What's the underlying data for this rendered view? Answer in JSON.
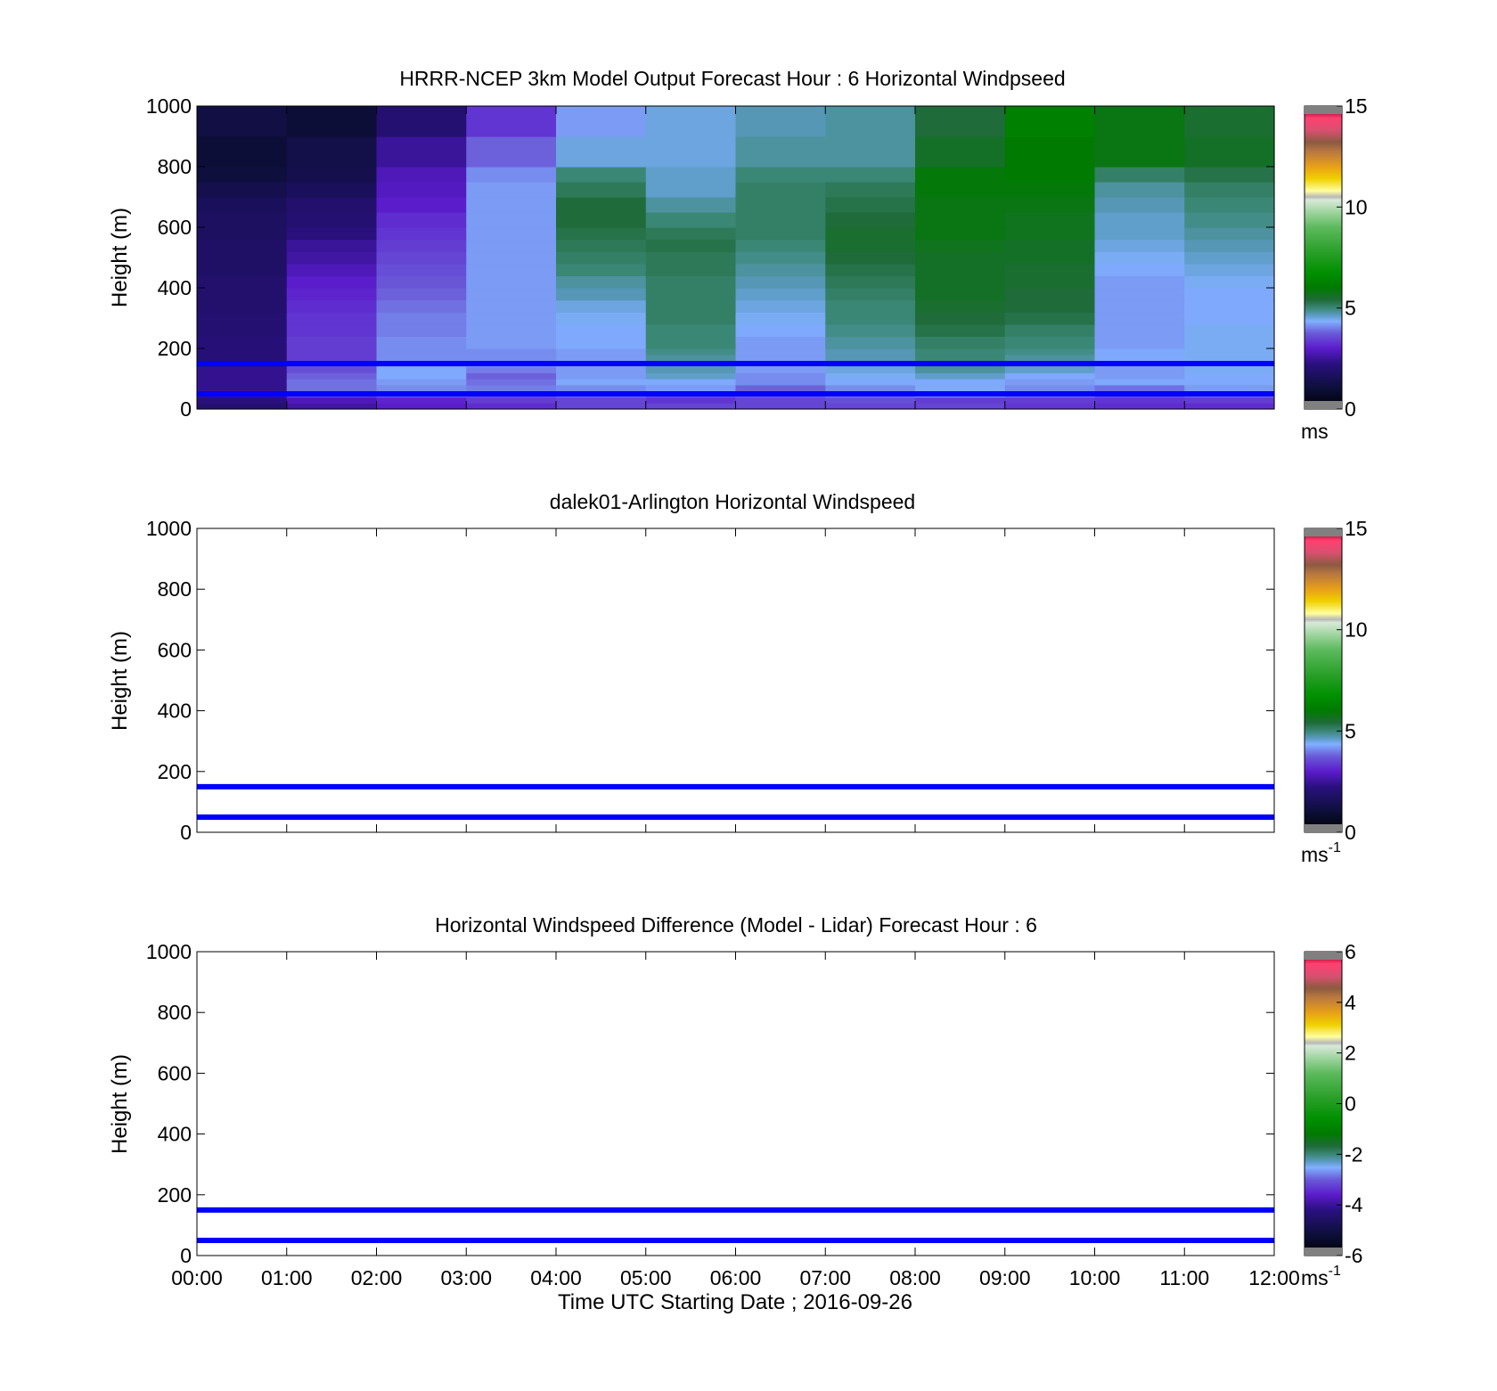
{
  "figure": {
    "xlabel": "Time UTC  Starting Date ; 2016-09-26",
    "x_ticks": [
      "00:00",
      "01:00",
      "02:00",
      "03:00",
      "04:00",
      "05:00",
      "06:00",
      "07:00",
      "08:00",
      "09:00",
      "10:00",
      "11:00",
      "12:00"
    ],
    "y_ticks": [
      "0",
      "200",
      "400",
      "600",
      "800",
      "1000"
    ],
    "line_color": "#0000ff",
    "colormap": [
      {
        "v": 0.0,
        "c": "#000000"
      },
      {
        "v": 0.07,
        "c": "#0d0f3a"
      },
      {
        "v": 0.15,
        "c": "#2a1080"
      },
      {
        "v": 0.2,
        "c": "#5b1ccc"
      },
      {
        "v": 0.25,
        "c": "#6a5ad8"
      },
      {
        "v": 0.29,
        "c": "#80b0ff"
      },
      {
        "v": 0.31,
        "c": "#5a9ac0"
      },
      {
        "v": 0.33,
        "c": "#3e8a7e"
      },
      {
        "v": 0.36,
        "c": "#1f6b3a"
      },
      {
        "v": 0.4,
        "c": "#007a00"
      },
      {
        "v": 0.45,
        "c": "#009000"
      },
      {
        "v": 0.52,
        "c": "#2aa02a"
      },
      {
        "v": 0.6,
        "c": "#5cba5c"
      },
      {
        "v": 0.65,
        "c": "#9fd49f"
      },
      {
        "v": 0.69,
        "c": "#d8ead8"
      },
      {
        "v": 0.7,
        "c": "#b8b8b8"
      },
      {
        "v": 0.72,
        "c": "#ffffa0"
      },
      {
        "v": 0.76,
        "c": "#f0d000"
      },
      {
        "v": 0.8,
        "c": "#e8a018"
      },
      {
        "v": 0.85,
        "c": "#b87840"
      },
      {
        "v": 0.88,
        "c": "#8c5a40"
      },
      {
        "v": 0.92,
        "c": "#d85070"
      },
      {
        "v": 0.96,
        "c": "#ff4070"
      },
      {
        "v": 0.98,
        "c": "#c0103a"
      },
      {
        "v": 1.0,
        "c": "#a00020"
      }
    ]
  },
  "chart_data": [
    {
      "type": "heatmap",
      "title": "HRRR-NCEP 3km Model Output   Forecast Hour : 6 Horizontal Windpseed",
      "ylabel": "Height (m)",
      "ylim": [
        0,
        1000
      ],
      "x_hours": [
        0,
        1,
        2,
        3,
        4,
        5,
        6,
        7,
        8,
        9,
        10,
        11,
        12
      ],
      "y_edges": [
        0,
        20,
        40,
        60,
        80,
        100,
        120,
        140,
        160,
        180,
        200,
        240,
        280,
        320,
        360,
        400,
        440,
        480,
        520,
        560,
        600,
        650,
        700,
        750,
        800,
        900,
        1000
      ],
      "values": [
        [
          2.0,
          2.6,
          3.0,
          3.2,
          3.5,
          3.5,
          3.5,
          3.5,
          3.5,
          3.3,
          3.2,
          3.2
        ],
        [
          2.2,
          2.8,
          3.1,
          3.4,
          3.5,
          3.3,
          3.5,
          3.6,
          3.4,
          3.4,
          3.3,
          3.4
        ],
        [
          2.4,
          3.5,
          3.8,
          3.7,
          3.9,
          3.7,
          3.8,
          4.0,
          4.2,
          4.0,
          3.7,
          3.9
        ],
        [
          2.4,
          3.9,
          4.1,
          4.0,
          4.1,
          4.2,
          3.8,
          4.1,
          4.3,
          4.1,
          3.9,
          4.2
        ],
        [
          2.4,
          3.9,
          4.2,
          3.9,
          4.3,
          4.3,
          4.1,
          4.3,
          4.3,
          4.2,
          4.3,
          4.3
        ],
        [
          2.4,
          3.8,
          4.3,
          3.8,
          4.2,
          4.6,
          4.1,
          4.4,
          4.6,
          4.3,
          4.2,
          4.3
        ],
        [
          2.4,
          3.6,
          4.3,
          4.0,
          4.2,
          4.7,
          4.2,
          4.5,
          4.8,
          4.6,
          4.2,
          4.4
        ],
        [
          2.2,
          3.5,
          4.2,
          4.1,
          4.2,
          4.7,
          4.2,
          4.6,
          4.9,
          4.7,
          4.2,
          4.4
        ],
        [
          2.1,
          3.4,
          4.1,
          4.1,
          4.2,
          4.8,
          4.2,
          4.7,
          5.0,
          4.8,
          4.3,
          4.4
        ],
        [
          2.1,
          3.4,
          4.1,
          4.1,
          4.2,
          4.9,
          4.2,
          4.7,
          5.0,
          4.9,
          4.3,
          4.4
        ],
        [
          2.1,
          3.4,
          4.1,
          4.2,
          4.3,
          5.0,
          4.2,
          4.8,
          5.1,
          5.0,
          4.2,
          4.4
        ],
        [
          2.0,
          3.3,
          4.0,
          4.2,
          4.3,
          5.0,
          4.3,
          4.9,
          5.3,
          5.1,
          4.2,
          4.4
        ],
        [
          2.0,
          3.3,
          4.0,
          4.2,
          4.4,
          5.1,
          4.4,
          5.0,
          5.4,
          5.3,
          4.2,
          4.3
        ],
        [
          1.9,
          3.2,
          3.9,
          4.2,
          4.5,
          5.1,
          4.5,
          5.0,
          5.5,
          5.4,
          4.2,
          4.3
        ],
        [
          1.9,
          3.1,
          3.8,
          4.2,
          4.7,
          5.1,
          4.6,
          5.1,
          5.6,
          5.4,
          4.2,
          4.3
        ],
        [
          1.9,
          3.0,
          3.7,
          4.2,
          4.8,
          5.1,
          4.7,
          5.2,
          5.6,
          5.5,
          4.2,
          4.4
        ],
        [
          1.8,
          2.8,
          3.6,
          4.2,
          5.0,
          5.2,
          4.8,
          5.3,
          5.6,
          5.5,
          4.3,
          4.5
        ],
        [
          1.8,
          2.6,
          3.5,
          4.2,
          5.1,
          5.2,
          4.9,
          5.4,
          5.6,
          5.6,
          4.4,
          4.6
        ],
        [
          1.8,
          2.5,
          3.4,
          4.2,
          5.2,
          5.3,
          5.0,
          5.5,
          5.7,
          5.6,
          4.5,
          4.7
        ],
        [
          1.7,
          2.2,
          3.3,
          4.2,
          5.3,
          5.2,
          5.1,
          5.5,
          5.8,
          5.7,
          4.6,
          4.8
        ],
        [
          1.7,
          2.0,
          3.2,
          4.2,
          5.4,
          5.0,
          5.1,
          5.4,
          5.8,
          5.7,
          4.6,
          4.9
        ],
        [
          1.6,
          1.9,
          3.0,
          4.2,
          5.4,
          4.8,
          5.1,
          5.3,
          5.8,
          5.8,
          4.7,
          5.0
        ],
        [
          1.4,
          1.6,
          2.9,
          4.2,
          5.2,
          4.6,
          5.1,
          5.2,
          5.9,
          5.9,
          4.8,
          5.1
        ],
        [
          1.1,
          1.4,
          2.8,
          4.1,
          5.0,
          4.6,
          5.0,
          5.0,
          5.9,
          6.0,
          5.1,
          5.3
        ],
        [
          1.0,
          1.3,
          2.5,
          3.8,
          4.5,
          4.5,
          4.8,
          4.8,
          5.6,
          6.0,
          5.8,
          5.6
        ],
        [
          1.2,
          1.0,
          2.0,
          3.3,
          4.2,
          4.5,
          4.7,
          4.8,
          5.4,
          6.2,
          5.8,
          5.5
        ]
      ],
      "lines_m": [
        150,
        50
      ],
      "colorbar": {
        "min": 0,
        "max": 15,
        "ticks": [
          "0",
          "5",
          "10",
          "15"
        ],
        "unit": "ms",
        "unit_sup": ""
      }
    },
    {
      "type": "heatmap",
      "title": "dalek01-Arlington  Horizontal Windspeed",
      "ylabel": "Height (m)",
      "ylim": [
        0,
        1000
      ],
      "values": [],
      "lines_m": [
        150,
        50
      ],
      "colorbar": {
        "min": 0,
        "max": 15,
        "ticks": [
          "0",
          "5",
          "10",
          "15"
        ],
        "unit": "ms",
        "unit_sup": "-1"
      }
    },
    {
      "type": "heatmap",
      "title": "Horizontal Windspeed Difference (Model - Lidar) Forecast Hour : 6",
      "ylabel": "Height (m)",
      "ylim": [
        0,
        1000
      ],
      "values": [],
      "lines_m": [
        150,
        50
      ],
      "colorbar": {
        "min": -6,
        "max": 6,
        "ticks": [
          "-6",
          "-4",
          "-2",
          "0",
          "2",
          "4",
          "6"
        ],
        "unit": "ms",
        "unit_sup": "-1"
      }
    }
  ]
}
